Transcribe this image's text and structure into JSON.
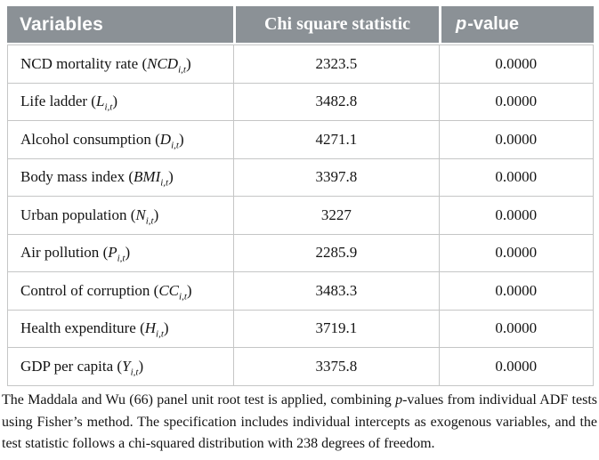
{
  "table": {
    "header": {
      "variables": "Variables",
      "chi_square": "Chi square statistic",
      "p_italic": "p",
      "p_rest": "-value"
    },
    "rows": [
      {
        "label": "NCD mortality rate",
        "symbol": "NCD",
        "subscript": "i,t",
        "chi_square": "2323.5",
        "p_value": "0.0000"
      },
      {
        "label": "Life ladder",
        "symbol": "L",
        "subscript": "i,t",
        "chi_square": "3482.8",
        "p_value": "0.0000"
      },
      {
        "label": "Alcohol consumption",
        "symbol": "D",
        "subscript": "i,t",
        "chi_square": "4271.1",
        "p_value": "0.0000"
      },
      {
        "label": "Body mass index",
        "symbol": "BMI",
        "subscript": "i,t",
        "chi_square": "3397.8",
        "p_value": "0.0000"
      },
      {
        "label": "Urban population",
        "symbol": "N",
        "subscript": "i,t",
        "chi_square": "3227",
        "p_value": "0.0000"
      },
      {
        "label": "Air pollution",
        "symbol": "P",
        "subscript": "i,t",
        "chi_square": "2285.9",
        "p_value": "0.0000"
      },
      {
        "label": "Control of corruption",
        "symbol": "CC",
        "subscript": "i,t",
        "chi_square": "3483.3",
        "p_value": "0.0000"
      },
      {
        "label": "Health expenditure",
        "symbol": "H",
        "subscript": "i,t",
        "chi_square": "3719.1",
        "p_value": "0.0000"
      },
      {
        "label": "GDP per capita",
        "symbol": "Y",
        "subscript": "i,t",
        "chi_square": "3375.8",
        "p_value": "0.0000"
      }
    ]
  },
  "footnote_segments": [
    {
      "text": "The Maddala and Wu (66) panel unit root test is applied, combining ",
      "italic": false
    },
    {
      "text": "p",
      "italic": true
    },
    {
      "text": "-values from individual ADF tests using Fisher’s method. The specification includes individual intercepts as exogenous variables, and the test statistic follows a chi-squared distribution with 238 degrees of freedom.",
      "italic": false
    }
  ],
  "colors": {
    "header_background": "#8b9196",
    "header_text": "#ffffff",
    "cell_border": "#c5c6c6",
    "body_text": "#131313"
  }
}
